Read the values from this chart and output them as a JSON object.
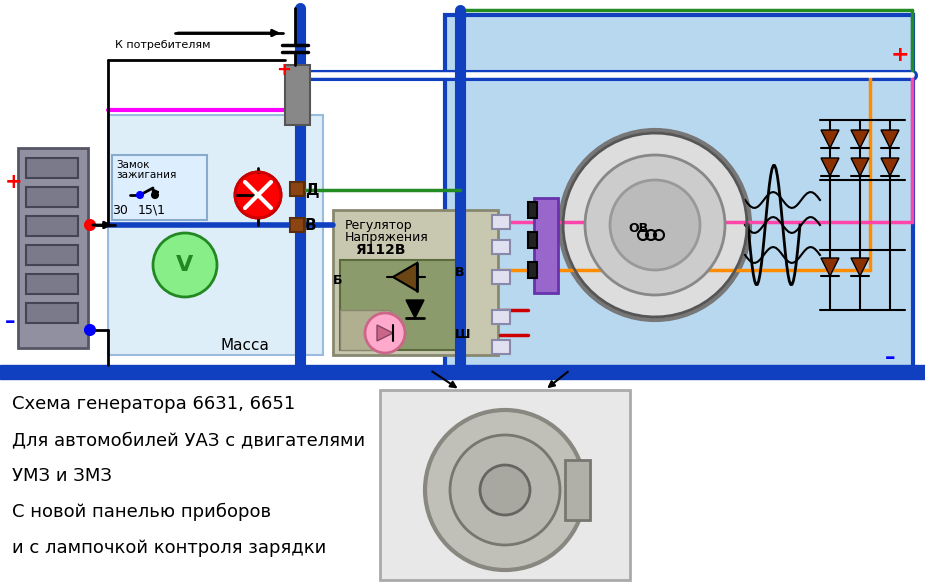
{
  "bg_color": "#ffffff",
  "light_blue": "#b8d8f0",
  "blue_line": "#1040c0",
  "text_lines": [
    "Схема генератора 6631, 6651",
    "Для автомобилей УАЗ с двигателями",
    "УМЗ и ЗМЗ",
    "С новой панелью приборов",
    "и с лампочкой контроля зарядки"
  ]
}
